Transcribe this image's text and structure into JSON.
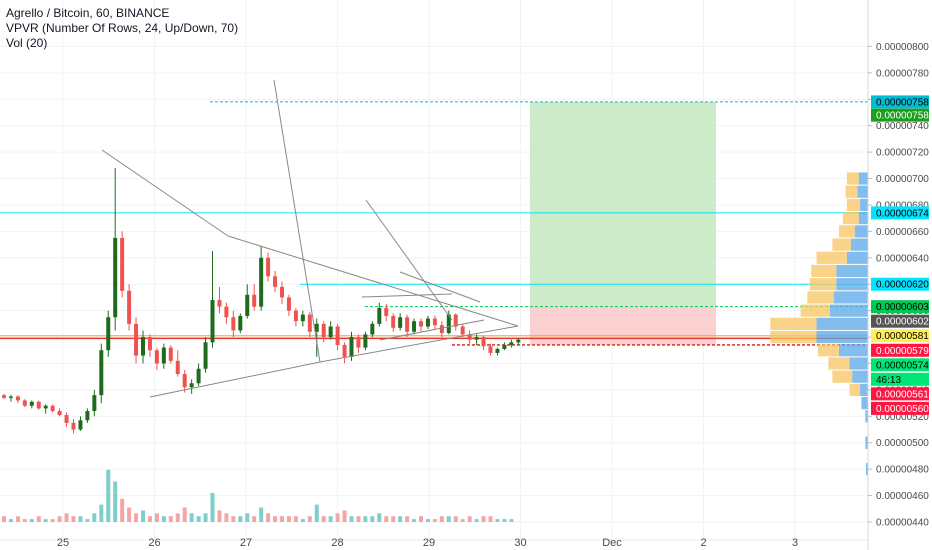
{
  "legend": {
    "title": "Agrello / Bitcoin, 60, BINANCE",
    "indicator1": "VPVR (Number Of Rows, 24, Up/Down, 70)",
    "indicator2": "Vol (20)"
  },
  "colors": {
    "up": "#26a69a",
    "up_body": "#1e6b1e",
    "down": "#ef5350",
    "vol_up": "#7ecfcb",
    "vol_down": "#f4a6a4",
    "target_zone": "#cdeac9",
    "stop_zone": "#fbd0d0",
    "vp_up": "#5aa7e8",
    "vp_down": "#f7c660",
    "current_line": "#e53935",
    "orange_line": "#f5a623",
    "trend_lines": "#888888"
  },
  "chart_data": {
    "type": "candlestick",
    "symbol": "Agrello / Bitcoin",
    "interval": "60",
    "exchange": "BINANCE",
    "ylim": [
      4.4e-06,
      8.2e-06
    ],
    "y_ticks": [
      "0.00000800",
      "0.00000780",
      "0.00000760",
      "0.00000740",
      "0.00000720",
      "0.00000700",
      "0.00000680",
      "0.00000660",
      "0.00000640",
      "0.00000620",
      "0.00000600",
      "0.00000580",
      "0.00000560",
      "0.00000540",
      "0.00000520",
      "0.00000500",
      "0.00000480",
      "0.00000460",
      "0.00000440"
    ],
    "x_ticks": [
      "25",
      "26",
      "27",
      "28",
      "29",
      "30",
      "Dec",
      "2",
      "3"
    ],
    "price_tags": [
      {
        "label": "0.00000758",
        "value": 7.58e-06,
        "bg": "#00bcd4",
        "fg": "#000000"
      },
      {
        "label": "0.00000758",
        "value": 7.48e-06,
        "bg": "#1b9e1b",
        "fg": "#ffffff"
      },
      {
        "label": "0.00000674",
        "value": 6.74e-06,
        "bg": "#00e5ff",
        "fg": "#000000"
      },
      {
        "label": "0.00000620",
        "value": 6.2e-06,
        "bg": "#00e5ff",
        "fg": "#000000"
      },
      {
        "label": "0.00000603",
        "value": 6.03e-06,
        "bg": "#00c853",
        "fg": "#000000"
      },
      {
        "label": "0.00000602",
        "value": 5.92e-06,
        "bg": "#555555",
        "fg": "#ffffff"
      },
      {
        "label": "0.00000581",
        "value": 5.81e-06,
        "bg": "#ffee58",
        "fg": "#000000"
      },
      {
        "label": "0.00000579",
        "value": 5.7e-06,
        "bg": "#ff1744",
        "fg": "#ffffff"
      },
      {
        "label": "0.00000574",
        "value": 5.59e-06,
        "bg": "#00e676",
        "fg": "#000000"
      },
      {
        "label": "46:13",
        "value": 5.48e-06,
        "bg": "#00e676",
        "fg": "#000000"
      },
      {
        "label": "0.00000561",
        "value": 5.37e-06,
        "bg": "#ff1744",
        "fg": "#ffffff"
      },
      {
        "label": "0.00000560",
        "value": 5.26e-06,
        "bg": "#ff1744",
        "fg": "#ffffff"
      }
    ],
    "series": [
      {
        "name": "candles",
        "values": [
          [
            5.36e-06,
            5.37e-06,
            5.33e-06,
            5.34e-06
          ],
          [
            5.34e-06,
            5.36e-06,
            5.31e-06,
            5.35e-06
          ],
          [
            5.35e-06,
            5.36e-06,
            5.3e-06,
            5.32e-06
          ],
          [
            5.32e-06,
            5.33e-06,
            5.27e-06,
            5.28e-06
          ],
          [
            5.28e-06,
            5.32e-06,
            5.26e-06,
            5.31e-06
          ],
          [
            5.31e-06,
            5.32e-06,
            5.25e-06,
            5.26e-06
          ],
          [
            5.26e-06,
            5.29e-06,
            5.22e-06,
            5.28e-06
          ],
          [
            5.28e-06,
            5.29e-06,
            5.23e-06,
            5.24e-06
          ],
          [
            5.24e-06,
            5.26e-06,
            5.2e-06,
            5.21e-06
          ],
          [
            5.21e-06,
            5.23e-06,
            5.12e-06,
            5.15e-06
          ],
          [
            5.15e-06,
            5.18e-06,
            5.07e-06,
            5.1e-06
          ],
          [
            5.1e-06,
            5.2e-06,
            5.09e-06,
            5.17e-06
          ],
          [
            5.17e-06,
            5.26e-06,
            5.15e-06,
            5.24e-06
          ],
          [
            5.24e-06,
            5.4e-06,
            5.2e-06,
            5.36e-06
          ],
          [
            5.36e-06,
            5.75e-06,
            5.3e-06,
            5.7e-06
          ],
          [
            5.7e-06,
            6e-06,
            5.65e-06,
            5.95e-06
          ],
          [
            5.95e-06,
            7.08e-06,
            5.85e-06,
            6.55e-06
          ],
          [
            6.55e-06,
            6.6e-06,
            6.1e-06,
            6.15e-06
          ],
          [
            6.15e-06,
            6.2e-06,
            5.85e-06,
            5.9e-06
          ],
          [
            5.9e-06,
            5.95e-06,
            5.6e-06,
            5.66e-06
          ],
          [
            5.66e-06,
            5.85e-06,
            5.6e-06,
            5.8e-06
          ],
          [
            5.8e-06,
            5.82e-06,
            5.65e-06,
            5.7e-06
          ],
          [
            5.7e-06,
            5.72e-06,
            5.55e-06,
            5.6e-06
          ],
          [
            5.6e-06,
            5.75e-06,
            5.56e-06,
            5.72e-06
          ],
          [
            5.72e-06,
            5.74e-06,
            5.6e-06,
            5.62e-06
          ],
          [
            5.62e-06,
            5.7e-06,
            5.5e-06,
            5.52e-06
          ],
          [
            5.52e-06,
            5.55e-06,
            5.38e-06,
            5.42e-06
          ],
          [
            5.42e-06,
            5.48e-06,
            5.37e-06,
            5.45e-06
          ],
          [
            5.45e-06,
            5.6e-06,
            5.43e-06,
            5.56e-06
          ],
          [
            5.56e-06,
            5.8e-06,
            5.53e-06,
            5.76e-06
          ],
          [
            5.76e-06,
            6.45e-06,
            5.72e-06,
            6.08e-06
          ],
          [
            6.08e-06,
            6.18e-06,
            5.98e-06,
            6.03e-06
          ],
          [
            6.03e-06,
            6.06e-06,
            5.9e-06,
            5.95e-06
          ],
          [
            5.95e-06,
            6e-06,
            5.8e-06,
            5.85e-06
          ],
          [
            5.85e-06,
            5.98e-06,
            5.83e-06,
            5.96e-06
          ],
          [
            5.96e-06,
            6.2e-06,
            5.94e-06,
            6.12e-06
          ],
          [
            6.12e-06,
            6.2e-06,
            6e-06,
            6.03e-06
          ],
          [
            6.03e-06,
            6.49e-06,
            6e-06,
            6.4e-06
          ],
          [
            6.4e-06,
            6.44e-06,
            6.22e-06,
            6.26e-06
          ],
          [
            6.26e-06,
            6.3e-06,
            6.14e-06,
            6.18e-06
          ],
          [
            6.18e-06,
            6.22e-06,
            6.05e-06,
            6.1e-06
          ],
          [
            6.1e-06,
            6.12e-06,
            5.96e-06,
            6e-06
          ],
          [
            6e-06,
            6.02e-06,
            5.88e-06,
            5.92e-06
          ],
          [
            5.92e-06,
            6e-06,
            5.88e-06,
            5.97e-06
          ],
          [
            5.97e-06,
            5.99e-06,
            5.8e-06,
            5.84e-06
          ],
          [
            5.84e-06,
            5.94e-06,
            5.65e-06,
            5.9e-06
          ],
          [
            5.9e-06,
            5.92e-06,
            5.76e-06,
            5.8e-06
          ],
          [
            5.8e-06,
            5.92e-06,
            5.78e-06,
            5.88e-06
          ],
          [
            5.88e-06,
            5.9e-06,
            5.7e-06,
            5.74e-06
          ],
          [
            5.74e-06,
            5.76e-06,
            5.6e-06,
            5.65e-06
          ],
          [
            5.65e-06,
            5.84e-06,
            5.62e-06,
            5.8e-06
          ],
          [
            5.8e-06,
            5.82e-06,
            5.68e-06,
            5.72e-06
          ],
          [
            5.72e-06,
            5.84e-06,
            5.7e-06,
            5.82e-06
          ],
          [
            5.82e-06,
            5.92e-06,
            5.8e-06,
            5.9e-06
          ],
          [
            5.9e-06,
            6.06e-06,
            5.88e-06,
            6.02e-06
          ],
          [
            6.02e-06,
            6.05e-06,
            5.92e-06,
            5.96e-06
          ],
          [
            5.96e-06,
            5.98e-06,
            5.84e-06,
            5.87e-06
          ],
          [
            5.87e-06,
            5.98e-06,
            5.85e-06,
            5.95e-06
          ],
          [
            5.95e-06,
            5.97e-06,
            5.8e-06,
            5.84e-06
          ],
          [
            5.84e-06,
            5.94e-06,
            5.82e-06,
            5.92e-06
          ],
          [
            5.92e-06,
            5.94e-06,
            5.84e-06,
            5.88e-06
          ],
          [
            5.88e-06,
            5.96e-06,
            5.86e-06,
            5.94e-06
          ],
          [
            5.94e-06,
            5.96e-06,
            5.86e-06,
            5.89e-06
          ],
          [
            5.89e-06,
            5.92e-06,
            5.8e-06,
            5.83e-06
          ],
          [
            5.83e-06,
            6e-06,
            5.82e-06,
            5.97e-06
          ],
          [
            5.97e-06,
            5.98e-06,
            5.85e-06,
            5.88e-06
          ],
          [
            5.88e-06,
            5.9e-06,
            5.8e-06,
            5.82e-06
          ],
          [
            5.82e-06,
            5.85e-06,
            5.75e-06,
            5.78e-06
          ],
          [
            5.78e-06,
            5.82e-06,
            5.74e-06,
            5.8e-06
          ],
          [
            5.8e-06,
            5.81e-06,
            5.7e-06,
            5.73e-06
          ],
          [
            5.73e-06,
            5.75e-06,
            5.66e-06,
            5.68e-06
          ],
          [
            5.68e-06,
            5.72e-06,
            5.66e-06,
            5.71e-06
          ],
          [
            5.71e-06,
            5.76e-06,
            5.7e-06,
            5.74e-06
          ],
          [
            5.74e-06,
            5.78e-06,
            5.72e-06,
            5.76e-06
          ],
          [
            5.76e-06,
            5.79e-06,
            5.74e-06,
            5.78e-06
          ]
        ]
      },
      {
        "name": "volume",
        "values": [
          2,
          1,
          2,
          1,
          1,
          2,
          1,
          1,
          2,
          3,
          2,
          2,
          1,
          3,
          6,
          18,
          14,
          8,
          5,
          3,
          4,
          2,
          3,
          2,
          2,
          3,
          5,
          3,
          2,
          3,
          10,
          4,
          3,
          2,
          2,
          3,
          2,
          5,
          3,
          2,
          2,
          2,
          2,
          1,
          2,
          6,
          2,
          2,
          3,
          4,
          2,
          2,
          2,
          2,
          3,
          2,
          2,
          2,
          2,
          1,
          2,
          1,
          1,
          2,
          2,
          2,
          1,
          2,
          1,
          2,
          2,
          1,
          1,
          1
        ]
      }
    ],
    "volume_profile": [
      {
        "price": 7e-06,
        "up": 14,
        "down": 18
      },
      {
        "price": 6.9e-06,
        "up": 16,
        "down": 18
      },
      {
        "price": 6.8e-06,
        "up": 12,
        "down": 20
      },
      {
        "price": 6.7e-06,
        "up": 14,
        "down": 24
      },
      {
        "price": 6.6e-06,
        "up": 20,
        "down": 24
      },
      {
        "price": 6.5e-06,
        "up": 26,
        "down": 28
      },
      {
        "price": 6.4e-06,
        "up": 32,
        "down": 46
      },
      {
        "price": 6.3e-06,
        "up": 48,
        "down": 38
      },
      {
        "price": 6.2e-06,
        "up": 48,
        "down": 40
      },
      {
        "price": 6.1e-06,
        "up": 52,
        "down": 40
      },
      {
        "price": 6e-06,
        "up": 58,
        "down": 44
      },
      {
        "price": 5.9e-06,
        "up": 78,
        "down": 70
      },
      {
        "price": 5.8e-06,
        "up": 78,
        "down": 70
      },
      {
        "price": 5.7e-06,
        "up": 44,
        "down": 32
      },
      {
        "price": 5.6e-06,
        "up": 28,
        "down": 32
      },
      {
        "price": 5.5e-06,
        "up": 24,
        "down": 30
      },
      {
        "price": 5.4e-06,
        "up": 12,
        "down": 16
      },
      {
        "price": 5.3e-06,
        "up": 10,
        "down": 0
      },
      {
        "price": 5.2e-06,
        "up": 4,
        "down": 0
      },
      {
        "price": 5e-06,
        "up": 4,
        "down": 0
      },
      {
        "price": 4.8e-06,
        "up": 3,
        "down": 0
      }
    ],
    "position": {
      "entry": 6.03e-06,
      "target": 7.58e-06,
      "stop": 5.74e-06
    },
    "horizontal_lines": [
      {
        "price": 7.58e-06,
        "color": "#00bcd4",
        "dash": true
      },
      {
        "price": 6.74e-06,
        "color": "#00e5ff",
        "dash": false
      },
      {
        "price": 6.2e-06,
        "color": "#00e5ff",
        "dash": false
      },
      {
        "price": 6.03e-06,
        "color": "#00c853",
        "dash": true
      },
      {
        "price": 5.81e-06,
        "color": "#f5a623",
        "dash": false
      },
      {
        "price": 5.79e-06,
        "color": "#e53935",
        "dash": false
      },
      {
        "price": 5.74e-06,
        "color": "#e53935",
        "dash": true
      }
    ]
  }
}
